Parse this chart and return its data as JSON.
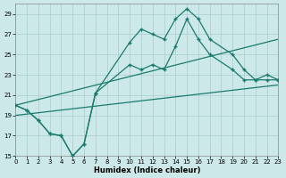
{
  "xlabel": "Humidex (Indice chaleur)",
  "xlim": [
    0,
    23
  ],
  "ylim": [
    15,
    30
  ],
  "yticks": [
    15,
    17,
    19,
    21,
    23,
    25,
    27,
    29
  ],
  "xticks": [
    0,
    1,
    2,
    3,
    4,
    5,
    6,
    7,
    8,
    9,
    10,
    11,
    12,
    13,
    14,
    15,
    16,
    17,
    18,
    19,
    20,
    21,
    22,
    23
  ],
  "background_color": "#cce8e8",
  "grid_color": "#aacece",
  "line_color": "#1a7a6e",
  "curve1_x": [
    0,
    1,
    2,
    3,
    4,
    5,
    6,
    7,
    10,
    11,
    12,
    13,
    14,
    15,
    16,
    17,
    19,
    20,
    21,
    22,
    23
  ],
  "curve1_y": [
    20.0,
    19.5,
    18.5,
    17.2,
    17.0,
    15.0,
    16.2,
    21.2,
    26.2,
    27.5,
    27.0,
    26.5,
    28.5,
    29.5,
    28.5,
    26.5,
    25.0,
    23.5,
    22.5,
    23.0,
    22.5
  ],
  "curve2_x": [
    0,
    1,
    2,
    3,
    4,
    5,
    6,
    7,
    10,
    11,
    12,
    13,
    14,
    15,
    16,
    17,
    19,
    20,
    21,
    22,
    23
  ],
  "curve2_y": [
    20.0,
    19.5,
    18.5,
    17.2,
    17.0,
    15.0,
    16.2,
    21.2,
    24.0,
    23.5,
    24.0,
    23.5,
    25.8,
    28.5,
    26.5,
    25.0,
    23.5,
    22.5,
    22.5,
    22.5,
    22.5
  ],
  "line1_x": [
    0,
    23
  ],
  "line1_y": [
    20.0,
    26.5
  ],
  "line2_x": [
    0,
    23
  ],
  "line2_y": [
    19.0,
    22.0
  ]
}
